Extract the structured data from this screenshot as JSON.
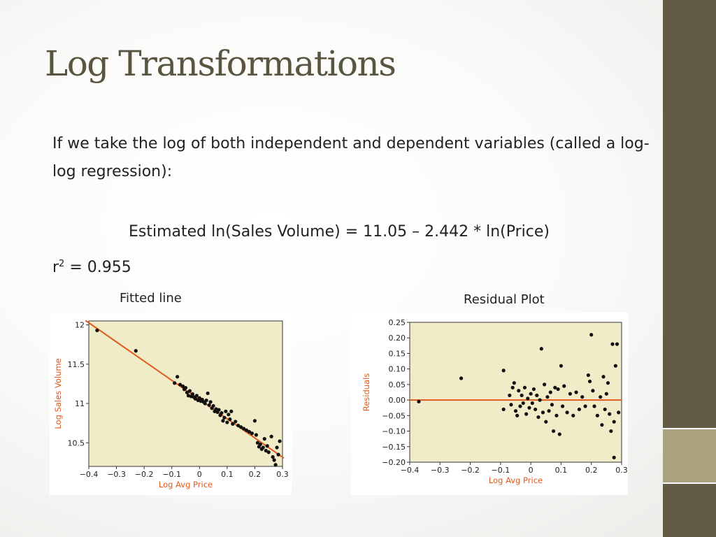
{
  "slide": {
    "title": "Log Transformations",
    "intro": "If we take the log of both independent and dependent variables (called a log-log regression):",
    "equation": "Estimated ln(Sales Volume) = 11.05 – 2.442 * ln(Price)",
    "r2_base": "r",
    "r2_exp": "2",
    "r2_rest": " = 0.955",
    "caption_left": "Fitted line",
    "caption_right": "Residual Plot"
  },
  "colors": {
    "title": "#5a5540",
    "sidebar": "#615a45",
    "sidebar_accent": "#a9a27c",
    "plot_background": "#f0ecc8",
    "line": "#e05a1e",
    "axis_label": "#e05a1e",
    "points": "#111111"
  },
  "chart_data": [
    {
      "type": "scatter",
      "xlabel": "Log Avg Price",
      "ylabel": "Log Sales Volume",
      "xlim": [
        -0.4,
        0.3
      ],
      "ylim": [
        10.2,
        12.05
      ],
      "xticks": [
        "−0.4",
        "−0.3",
        "−0.2",
        "−0.1",
        "0",
        "0.1",
        "0.2",
        "0.3"
      ],
      "xtick_values": [
        -0.4,
        -0.3,
        -0.2,
        -0.1,
        0,
        0.1,
        0.2,
        0.3
      ],
      "yticks": [
        "12",
        "11.5",
        "11",
        "10.5"
      ],
      "ytick_values": [
        12,
        11.5,
        11,
        10.5
      ],
      "fitted_line": {
        "intercept": 11.05,
        "slope": -2.442
      },
      "points": [
        [
          -0.37,
          11.93
        ],
        [
          -0.23,
          11.67
        ],
        [
          -0.09,
          11.26
        ],
        [
          -0.08,
          11.34
        ],
        [
          -0.07,
          11.24
        ],
        [
          -0.06,
          11.22
        ],
        [
          -0.055,
          11.18
        ],
        [
          -0.05,
          11.2
        ],
        [
          -0.045,
          11.14
        ],
        [
          -0.04,
          11.1
        ],
        [
          -0.035,
          11.16
        ],
        [
          -0.03,
          11.09
        ],
        [
          -0.025,
          11.12
        ],
        [
          -0.02,
          11.08
        ],
        [
          -0.015,
          11.06
        ],
        [
          -0.01,
          11.1
        ],
        [
          -0.005,
          11.04
        ],
        [
          0.0,
          11.07
        ],
        [
          0.005,
          11.03
        ],
        [
          0.01,
          11.05
        ],
        [
          0.015,
          11.02
        ],
        [
          0.02,
          11.0
        ],
        [
          0.025,
          11.04
        ],
        [
          0.03,
          11.13
        ],
        [
          0.035,
          10.98
        ],
        [
          0.04,
          11.02
        ],
        [
          0.045,
          10.94
        ],
        [
          0.05,
          10.97
        ],
        [
          0.055,
          10.9
        ],
        [
          0.06,
          10.93
        ],
        [
          0.065,
          10.89
        ],
        [
          0.07,
          10.92
        ],
        [
          0.075,
          10.85
        ],
        [
          0.08,
          10.88
        ],
        [
          0.085,
          10.78
        ],
        [
          0.09,
          10.82
        ],
        [
          0.095,
          10.9
        ],
        [
          0.1,
          10.76
        ],
        [
          0.105,
          10.86
        ],
        [
          0.11,
          10.8
        ],
        [
          0.115,
          10.9
        ],
        [
          0.12,
          10.74
        ],
        [
          0.13,
          10.77
        ],
        [
          0.14,
          10.72
        ],
        [
          0.15,
          10.7
        ],
        [
          0.16,
          10.68
        ],
        [
          0.17,
          10.66
        ],
        [
          0.18,
          10.64
        ],
        [
          0.19,
          10.62
        ],
        [
          0.2,
          10.78
        ],
        [
          0.205,
          10.6
        ],
        [
          0.21,
          10.5
        ],
        [
          0.215,
          10.45
        ],
        [
          0.22,
          10.48
        ],
        [
          0.225,
          10.42
        ],
        [
          0.23,
          10.44
        ],
        [
          0.235,
          10.55
        ],
        [
          0.24,
          10.4
        ],
        [
          0.245,
          10.46
        ],
        [
          0.25,
          10.38
        ],
        [
          0.26,
          10.58
        ],
        [
          0.265,
          10.32
        ],
        [
          0.27,
          10.28
        ],
        [
          0.275,
          10.22
        ],
        [
          0.28,
          10.44
        ],
        [
          0.285,
          10.35
        ],
        [
          0.29,
          10.52
        ]
      ]
    },
    {
      "type": "scatter",
      "xlabel": "Log Avg Price",
      "ylabel": "Residuals",
      "xlim": [
        -0.4,
        0.3
      ],
      "ylim": [
        -0.2,
        0.25
      ],
      "xticks": [
        "−0.4",
        "−0.3",
        "−0.2",
        "−0.1",
        "0",
        "0.1",
        "0.2",
        "0.3"
      ],
      "xtick_values": [
        -0.4,
        -0.3,
        -0.2,
        -0.1,
        0,
        0.1,
        0.2,
        0.3
      ],
      "yticks": [
        "0.25",
        "0.20",
        "0.15",
        "0.10",
        "0.05",
        "0.00",
        "−0.05",
        "−0.10",
        "−0.15",
        "−0.20"
      ],
      "ytick_values": [
        0.25,
        0.2,
        0.15,
        0.1,
        0.05,
        0.0,
        -0.05,
        -0.1,
        -0.15,
        -0.2
      ],
      "reference_line": 0,
      "points": [
        [
          -0.37,
          -0.005
        ],
        [
          -0.23,
          0.07
        ],
        [
          -0.09,
          0.095
        ],
        [
          -0.09,
          -0.03
        ],
        [
          -0.07,
          0.015
        ],
        [
          -0.065,
          -0.015
        ],
        [
          -0.06,
          0.04
        ],
        [
          -0.055,
          0.055
        ],
        [
          -0.05,
          -0.035
        ],
        [
          -0.045,
          -0.05
        ],
        [
          -0.04,
          0.03
        ],
        [
          -0.035,
          -0.02
        ],
        [
          -0.03,
          0.015
        ],
        [
          -0.025,
          -0.01
        ],
        [
          -0.02,
          0.04
        ],
        [
          -0.015,
          -0.045
        ],
        [
          -0.01,
          0.005
        ],
        [
          -0.005,
          -0.025
        ],
        [
          0.0,
          0.02
        ],
        [
          0.005,
          -0.01
        ],
        [
          0.01,
          0.035
        ],
        [
          0.015,
          -0.03
        ],
        [
          0.02,
          0.015
        ],
        [
          0.025,
          -0.055
        ],
        [
          0.03,
          0.0
        ],
        [
          0.035,
          0.165
        ],
        [
          0.04,
          -0.04
        ],
        [
          0.045,
          0.05
        ],
        [
          0.05,
          -0.07
        ],
        [
          0.055,
          0.01
        ],
        [
          0.06,
          -0.035
        ],
        [
          0.065,
          0.025
        ],
        [
          0.07,
          -0.015
        ],
        [
          0.075,
          -0.1
        ],
        [
          0.08,
          0.04
        ],
        [
          0.085,
          -0.05
        ],
        [
          0.09,
          0.035
        ],
        [
          0.095,
          -0.11
        ],
        [
          0.1,
          0.11
        ],
        [
          0.105,
          -0.02
        ],
        [
          0.11,
          0.045
        ],
        [
          0.12,
          -0.04
        ],
        [
          0.13,
          0.02
        ],
        [
          0.14,
          -0.05
        ],
        [
          0.15,
          0.025
        ],
        [
          0.16,
          -0.03
        ],
        [
          0.17,
          0.01
        ],
        [
          0.18,
          -0.02
        ],
        [
          0.19,
          0.08
        ],
        [
          0.195,
          0.06
        ],
        [
          0.2,
          0.21
        ],
        [
          0.205,
          0.03
        ],
        [
          0.21,
          -0.02
        ],
        [
          0.22,
          -0.05
        ],
        [
          0.23,
          0.01
        ],
        [
          0.235,
          -0.08
        ],
        [
          0.24,
          0.075
        ],
        [
          0.245,
          -0.03
        ],
        [
          0.25,
          0.02
        ],
        [
          0.255,
          0.055
        ],
        [
          0.26,
          -0.045
        ],
        [
          0.265,
          -0.1
        ],
        [
          0.27,
          0.18
        ],
        [
          0.275,
          -0.07
        ],
        [
          0.28,
          0.11
        ],
        [
          0.285,
          0.18
        ],
        [
          0.275,
          -0.185
        ],
        [
          0.29,
          -0.04
        ]
      ]
    }
  ]
}
